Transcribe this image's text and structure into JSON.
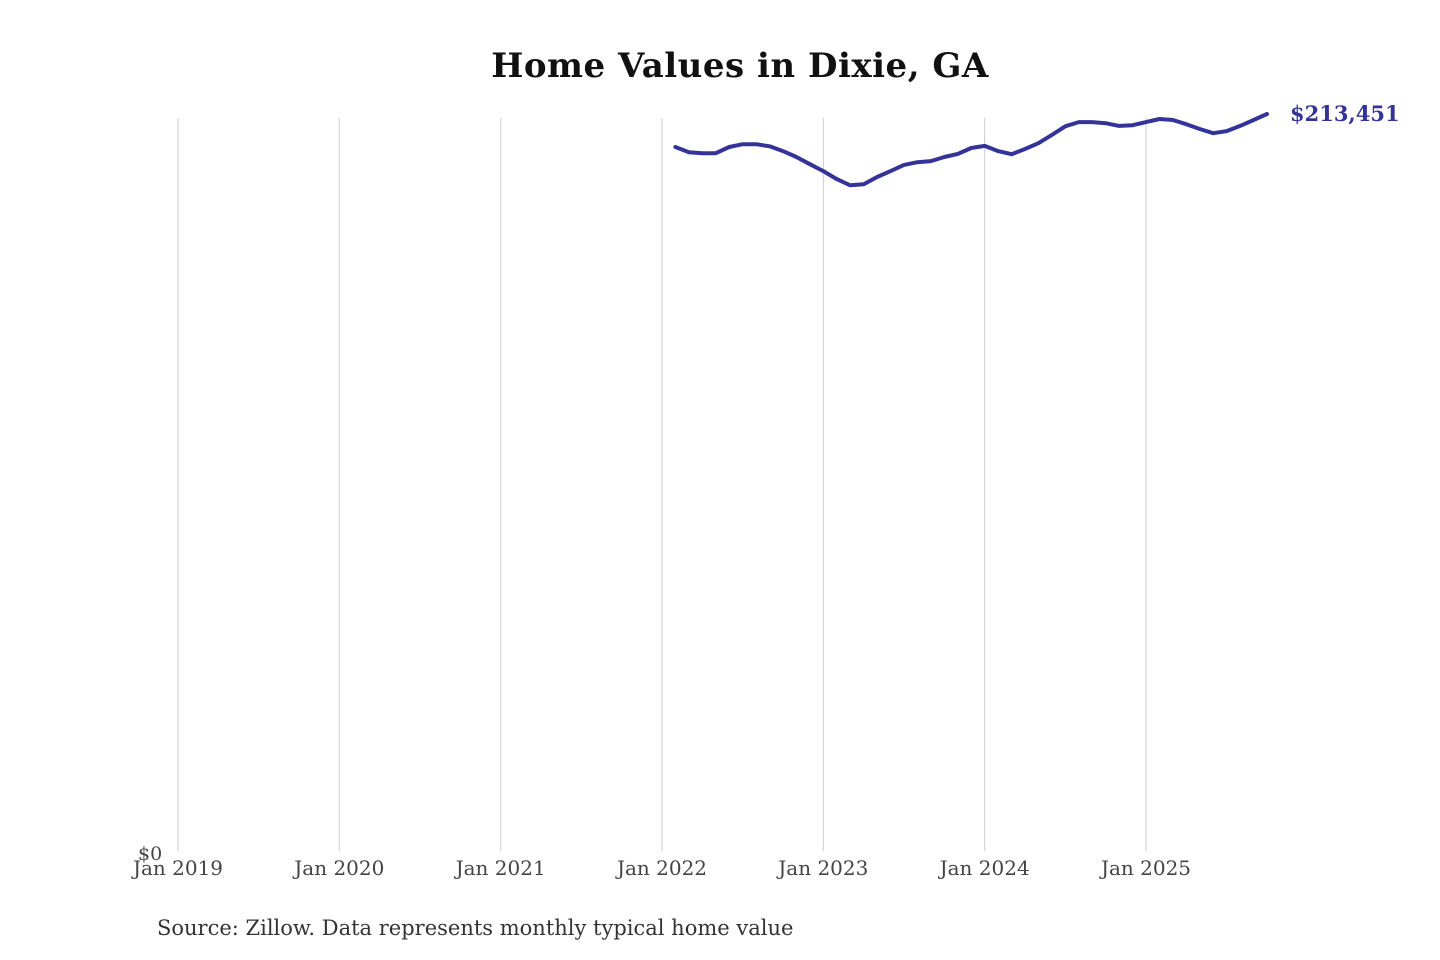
{
  "title": "Home Values in Dixie, GA",
  "source_note": "Source: Zillow. Data represents monthly typical home value",
  "colors": {
    "background": "#ffffff",
    "line": "#333399",
    "annotation": "#333399",
    "gridline": "#cccccc",
    "tick": "#444444",
    "title": "#111111",
    "source": "#333333"
  },
  "chart_data": {
    "type": "line",
    "title": "Home Values in Dixie, GA",
    "xlabel": "",
    "ylabel": "",
    "x_ticks": [
      "Jan 2019",
      "Jan 2020",
      "Jan 2021",
      "Jan 2022",
      "Jan 2023",
      "Jan 2024",
      "Jan 2025"
    ],
    "y_ticks": [
      "$0"
    ],
    "ylim": [
      0,
      215000
    ],
    "grid": "vertical-only",
    "legend": "none",
    "annotation": {
      "text": "$213,451",
      "position": "line-end"
    },
    "series": [
      {
        "name": "Monthly typical home value",
        "points": [
          [
            "2022-02",
            203900
          ],
          [
            "2022-03",
            202400
          ],
          [
            "2022-04",
            202100
          ],
          [
            "2022-05",
            202100
          ],
          [
            "2022-06",
            203900
          ],
          [
            "2022-07",
            204700
          ],
          [
            "2022-08",
            204700
          ],
          [
            "2022-09",
            204100
          ],
          [
            "2022-10",
            202700
          ],
          [
            "2022-11",
            201000
          ],
          [
            "2022-12",
            198900
          ],
          [
            "2023-01",
            196900
          ],
          [
            "2023-02",
            194600
          ],
          [
            "2023-03",
            192800
          ],
          [
            "2023-04",
            193100
          ],
          [
            "2023-05",
            195200
          ],
          [
            "2023-06",
            196900
          ],
          [
            "2023-07",
            198700
          ],
          [
            "2023-08",
            199500
          ],
          [
            "2023-09",
            199800
          ],
          [
            "2023-10",
            201000
          ],
          [
            "2023-11",
            201900
          ],
          [
            "2023-12",
            203600
          ],
          [
            "2024-01",
            204200
          ],
          [
            "2024-02",
            202700
          ],
          [
            "2024-03",
            201800
          ],
          [
            "2024-04",
            203300
          ],
          [
            "2024-05",
            205000
          ],
          [
            "2024-06",
            207400
          ],
          [
            "2024-07",
            209900
          ],
          [
            "2024-08",
            211100
          ],
          [
            "2024-09",
            211100
          ],
          [
            "2024-10",
            210800
          ],
          [
            "2024-11",
            210000
          ],
          [
            "2024-12",
            210200
          ],
          [
            "2025-01",
            211100
          ],
          [
            "2025-02",
            212000
          ],
          [
            "2025-03",
            211700
          ],
          [
            "2025-04",
            210500
          ],
          [
            "2025-05",
            209100
          ],
          [
            "2025-06",
            207900
          ],
          [
            "2025-07",
            208500
          ],
          [
            "2025-08",
            210000
          ],
          [
            "2025-09",
            211700
          ],
          [
            "2025-10",
            213451
          ]
        ]
      }
    ]
  }
}
